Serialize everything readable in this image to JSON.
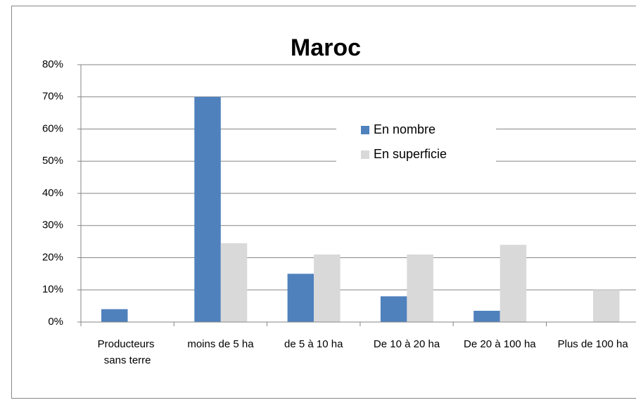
{
  "chart_data": {
    "type": "bar",
    "title": "Maroc",
    "categories": [
      "Producteurs sans terre",
      "moins de 5 ha",
      "de 5 à 10 ha",
      "De 10 à 20 ha",
      "De 20 à 100 ha",
      "Plus de 100 ha"
    ],
    "series": [
      {
        "name": "En nombre",
        "color": "#4f81bd",
        "values": [
          4,
          70,
          15,
          8,
          3.5,
          0
        ]
      },
      {
        "name": "En superficie",
        "color": "#d9d9d9",
        "values": [
          0,
          24.5,
          21,
          21,
          24,
          10
        ]
      }
    ],
    "ylim": [
      0,
      80
    ],
    "yticks": [
      {
        "value": 0,
        "label": "0%"
      },
      {
        "value": 10,
        "label": "10%"
      },
      {
        "value": 20,
        "label": "20%"
      },
      {
        "value": 30,
        "label": "30%"
      },
      {
        "value": 40,
        "label": "40%"
      },
      {
        "value": 50,
        "label": "50%"
      },
      {
        "value": 60,
        "label": "60%"
      },
      {
        "value": 70,
        "label": "70%"
      },
      {
        "value": 80,
        "label": "80%"
      }
    ],
    "grid": true
  }
}
